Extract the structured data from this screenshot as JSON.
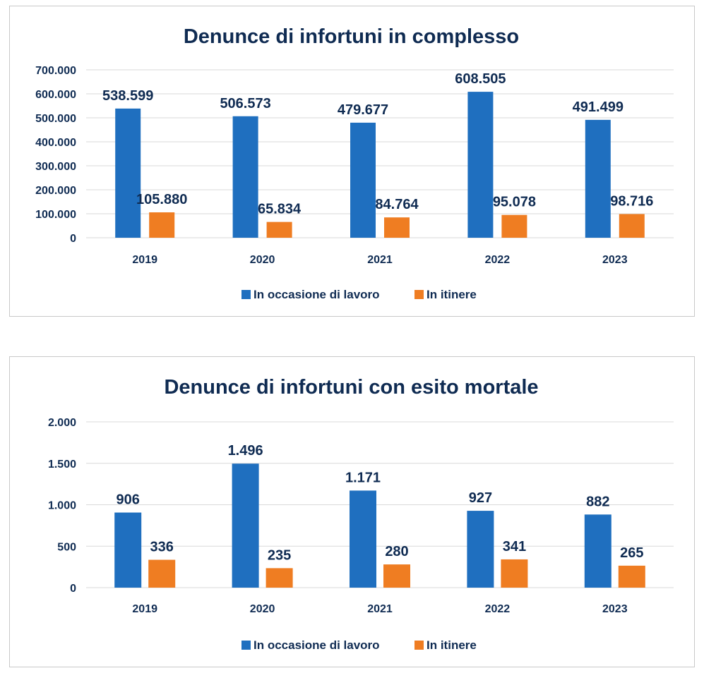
{
  "colors": {
    "work": "#1f6fbf",
    "commute": "#ef7d22",
    "text": "#0f2b52",
    "grid": "#d9d9d9"
  },
  "chart_data": [
    {
      "type": "bar",
      "title": "Denunce di infortuni in complesso",
      "categories": [
        "2019",
        "2020",
        "2021",
        "2022",
        "2023"
      ],
      "series": [
        {
          "name": "In occasione di lavoro",
          "values": [
            538599,
            506573,
            479677,
            608505,
            491499
          ],
          "labels": [
            "538.599",
            "506.573",
            "479.677",
            "608.505",
            "491.499"
          ]
        },
        {
          "name": "In itinere",
          "values": [
            105880,
            65834,
            84764,
            95078,
            98716
          ],
          "labels": [
            "105.880",
            "65.834",
            "84.764",
            "95.078",
            "98.716"
          ]
        }
      ],
      "yticks": [
        0,
        100000,
        200000,
        300000,
        400000,
        500000,
        600000,
        700000
      ],
      "ytick_labels": [
        "0",
        "100.000",
        "200.000",
        "300.000",
        "400.000",
        "500.000",
        "600.000",
        "700.000"
      ],
      "ylim": [
        0,
        700000
      ],
      "grid": true,
      "legend": "bottom"
    },
    {
      "type": "bar",
      "title": "Denunce di infortuni con esito mortale",
      "categories": [
        "2019",
        "2020",
        "2021",
        "2022",
        "2023"
      ],
      "series": [
        {
          "name": "In occasione di lavoro",
          "values": [
            906,
            1496,
            1171,
            927,
            882
          ],
          "labels": [
            "906",
            "1.496",
            "1.171",
            "927",
            "882"
          ]
        },
        {
          "name": "In itinere",
          "values": [
            336,
            235,
            280,
            341,
            265
          ],
          "labels": [
            "336",
            "235",
            "280",
            "341",
            "265"
          ]
        }
      ],
      "yticks": [
        0,
        500,
        1000,
        1500,
        2000
      ],
      "ytick_labels": [
        "0",
        "500",
        "1.000",
        "1.500",
        "2.000"
      ],
      "ylim": [
        0,
        2000
      ],
      "grid": true,
      "legend": "bottom"
    }
  ]
}
